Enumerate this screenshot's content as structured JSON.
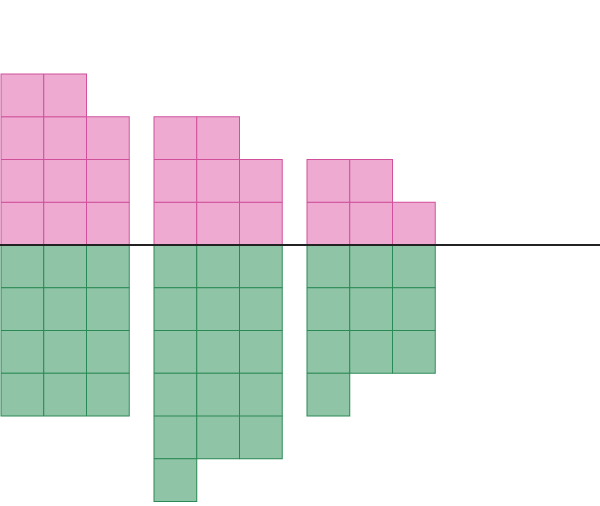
{
  "chart_data": {
    "type": "waffle",
    "categories": [
      null,
      null,
      null
    ],
    "columns": 3,
    "series": [
      {
        "color": "#eeaad0",
        "stroke": "#d0509c",
        "values": [
          11,
          8,
          5
        ],
        "direction": "up"
      },
      {
        "color": "#8fc4a6",
        "stroke": "#2a8a55",
        "values": [
          12,
          16,
          10
        ],
        "direction": "down"
      }
    ]
  }
}
